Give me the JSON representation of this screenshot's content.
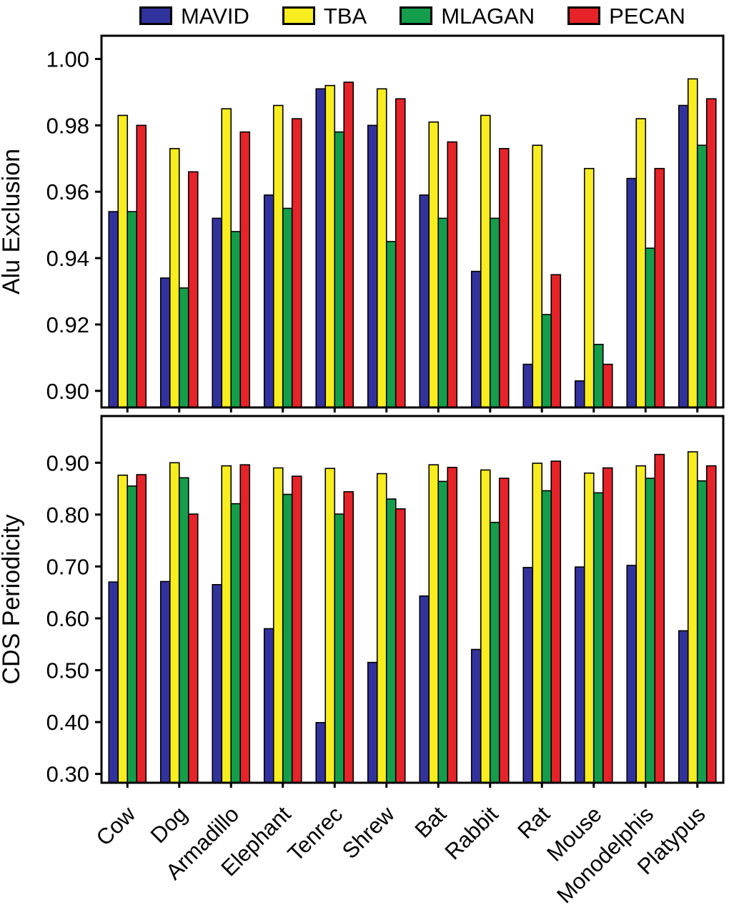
{
  "legend": {
    "items": [
      {
        "label": "MAVID",
        "color": "#32329e"
      },
      {
        "label": "TBA",
        "color": "#f8ed1f"
      },
      {
        "label": "MLAGAN",
        "color": "#149e4b"
      },
      {
        "label": "PECAN",
        "color": "#e62328"
      }
    ]
  },
  "chart_data": [
    {
      "type": "bar",
      "panel": "top",
      "title": "",
      "xlabel": "",
      "ylabel": "Alu Exclusion",
      "ylim": [
        0.895,
        1.007
      ],
      "yticks": [
        0.9,
        0.92,
        0.94,
        0.96,
        0.98,
        1.0
      ],
      "grid": false,
      "legend_position": "top",
      "show_xlabels": false,
      "categories": [
        "Cow",
        "Dog",
        "Armadillo",
        "Elephant",
        "Tenrec",
        "Shrew",
        "Bat",
        "Rabbit",
        "Rat",
        "Mouse",
        "Monodelphis",
        "Platypus"
      ],
      "series": [
        {
          "name": "MAVID",
          "values": [
            0.954,
            0.934,
            0.952,
            0.959,
            0.991,
            0.98,
            0.959,
            0.936,
            0.908,
            0.903,
            0.964,
            0.986
          ]
        },
        {
          "name": "TBA",
          "values": [
            0.983,
            0.973,
            0.985,
            0.986,
            0.992,
            0.991,
            0.981,
            0.983,
            0.974,
            0.967,
            0.982,
            0.994
          ]
        },
        {
          "name": "MLAGAN",
          "values": [
            0.954,
            0.931,
            0.948,
            0.955,
            0.978,
            0.945,
            0.952,
            0.952,
            0.923,
            0.914,
            0.943,
            0.974
          ]
        },
        {
          "name": "PECAN",
          "values": [
            0.98,
            0.966,
            0.978,
            0.982,
            0.993,
            0.988,
            0.975,
            0.973,
            0.935,
            0.908,
            0.967,
            0.988
          ]
        }
      ]
    },
    {
      "type": "bar",
      "panel": "bottom",
      "title": "",
      "xlabel": "",
      "ylabel": "CDS Periodicity",
      "ylim": [
        0.283,
        0.99
      ],
      "yticks": [
        0.3,
        0.4,
        0.5,
        0.6,
        0.7,
        0.8,
        0.9
      ],
      "grid": false,
      "legend_position": "none",
      "show_xlabels": true,
      "categories": [
        "Cow",
        "Dog",
        "Armadillo",
        "Elephant",
        "Tenrec",
        "Shrew",
        "Bat",
        "Rabbit",
        "Rat",
        "Mouse",
        "Monodelphis",
        "Platypus"
      ],
      "series": [
        {
          "name": "MAVID",
          "values": [
            0.67,
            0.671,
            0.665,
            0.58,
            0.399,
            0.515,
            0.643,
            0.54,
            0.698,
            0.699,
            0.702,
            0.576
          ]
        },
        {
          "name": "TBA",
          "values": [
            0.876,
            0.9,
            0.894,
            0.89,
            0.889,
            0.879,
            0.896,
            0.886,
            0.899,
            0.88,
            0.894,
            0.921
          ]
        },
        {
          "name": "MLAGAN",
          "values": [
            0.855,
            0.871,
            0.821,
            0.839,
            0.801,
            0.83,
            0.864,
            0.785,
            0.846,
            0.842,
            0.87,
            0.865
          ]
        },
        {
          "name": "PECAN",
          "values": [
            0.877,
            0.801,
            0.896,
            0.874,
            0.844,
            0.811,
            0.891,
            0.87,
            0.903,
            0.89,
            0.916,
            0.894
          ]
        }
      ]
    }
  ]
}
